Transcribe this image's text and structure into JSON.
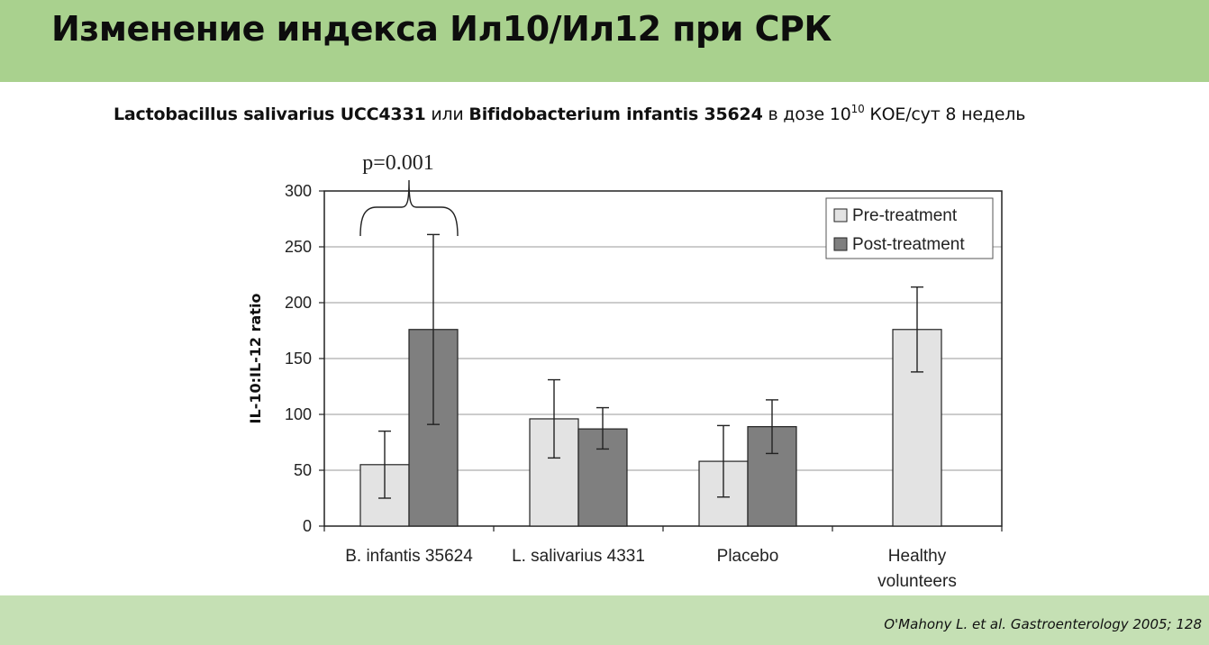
{
  "header": {
    "title": "Изменение индекса Ил10/Ил12 при СРК"
  },
  "subtitle": {
    "strain1": "Lactobacillus salivarius UCC4331",
    "conj": " или ",
    "strain2": "Bifidobacterium infantis 35624",
    "dose_prefix": " в дозе 10",
    "dose_exp": "10",
    "dose_suffix": " КОЕ/сут  8 недель"
  },
  "footer": {
    "citation": "O'Mahony L. et al. Gastroenterology 2005; 128"
  },
  "colors": {
    "pre": "#e3e3e3",
    "post": "#7f7f7f",
    "header_bg": "#a9d18e",
    "footer_bg": "#c5e0b4"
  },
  "chart_data": {
    "type": "bar",
    "title": "",
    "xlabel": "",
    "ylabel": "IL-10:IL-12 ratio",
    "ylim": [
      0,
      300
    ],
    "yticks": [
      "0",
      "50",
      "100",
      "150",
      "200",
      "250",
      "300"
    ],
    "grid": true,
    "legend_position": "top-right",
    "categories": [
      [
        "B. infantis 35624"
      ],
      [
        "L. salivarius 4331"
      ],
      [
        "Placebo"
      ],
      [
        "Healthy",
        "volunteers"
      ]
    ],
    "series": [
      {
        "name": "Pre-treatment",
        "values": [
          55,
          96,
          58,
          176
        ],
        "error_low": [
          25,
          61,
          26,
          138
        ],
        "error_high": [
          85,
          131,
          90,
          214
        ]
      },
      {
        "name": "Post-treatment",
        "values": [
          176,
          87,
          89,
          null
        ],
        "error_low": [
          91,
          69,
          65,
          null
        ],
        "error_high": [
          261,
          106,
          113,
          null
        ]
      }
    ],
    "annotations": [
      {
        "text": "p=0.001",
        "category_index": 0,
        "type": "bracket"
      }
    ]
  }
}
